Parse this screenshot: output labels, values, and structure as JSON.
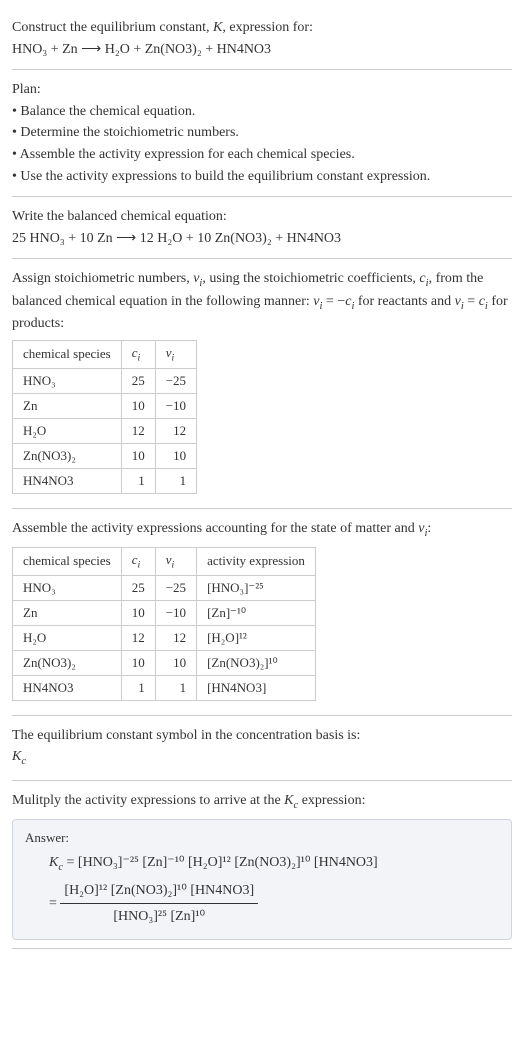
{
  "s1": {
    "l1": "Construct the equilibrium constant, K, expression for:",
    "l2": "HNO₃ + Zn ⟶ H₂O + Zn(NO3)₂ + HN4NO3"
  },
  "s2": {
    "h": "Plan:",
    "b1": "• Balance the chemical equation.",
    "b2": "• Determine the stoichiometric numbers.",
    "b3": "• Assemble the activity expression for each chemical species.",
    "b4": "• Use the activity expressions to build the equilibrium constant expression."
  },
  "s3": {
    "l1": "Write the balanced chemical equation:",
    "l2": "25 HNO₃ + 10 Zn ⟶ 12 H₂O + 10 Zn(NO3)₂ + HN4NO3"
  },
  "s4": {
    "p": "Assign stoichiometric numbers, νᵢ, using the stoichiometric coefficients, cᵢ, from the balanced chemical equation in the following manner: νᵢ = −cᵢ for reactants and νᵢ = cᵢ for products:",
    "cols": {
      "c1": "chemical species",
      "c2": "cᵢ",
      "c3": "νᵢ"
    },
    "rows": [
      {
        "sp": "HNO₃",
        "c": "25",
        "v": "−25"
      },
      {
        "sp": "Zn",
        "c": "10",
        "v": "−10"
      },
      {
        "sp": "H₂O",
        "c": "12",
        "v": "12"
      },
      {
        "sp": "Zn(NO3)₂",
        "c": "10",
        "v": "10"
      },
      {
        "sp": "HN4NO3",
        "c": "1",
        "v": "1"
      }
    ]
  },
  "s5": {
    "p": "Assemble the activity expressions accounting for the state of matter and νᵢ:",
    "cols": {
      "c1": "chemical species",
      "c2": "cᵢ",
      "c3": "νᵢ",
      "c4": "activity expression"
    },
    "rows": [
      {
        "sp": "HNO₃",
        "c": "25",
        "v": "−25",
        "a": "[HNO₃]⁻²⁵"
      },
      {
        "sp": "Zn",
        "c": "10",
        "v": "−10",
        "a": "[Zn]⁻¹⁰"
      },
      {
        "sp": "H₂O",
        "c": "12",
        "v": "12",
        "a": "[H₂O]¹²"
      },
      {
        "sp": "Zn(NO3)₂",
        "c": "10",
        "v": "10",
        "a": "[Zn(NO3)₂]¹⁰"
      },
      {
        "sp": "HN4NO3",
        "c": "1",
        "v": "1",
        "a": "[HN4NO3]"
      }
    ]
  },
  "s6": {
    "l1": "The equilibrium constant symbol in the concentration basis is:",
    "l2": "K𝚌"
  },
  "s7": {
    "p": "Mulitply the activity expressions to arrive at the K𝚌 expression:",
    "ans": "Answer:",
    "eq1_lhs": "K𝚌 = ",
    "eq1_rhs": "[HNO₃]⁻²⁵ [Zn]⁻¹⁰ [H₂O]¹² [Zn(NO3)₂]¹⁰ [HN4NO3]",
    "eq2_lhs": "= ",
    "eq2_num": "[H₂O]¹² [Zn(NO3)₂]¹⁰ [HN4NO3]",
    "eq2_den": "[HNO₃]²⁵ [Zn]¹⁰"
  }
}
